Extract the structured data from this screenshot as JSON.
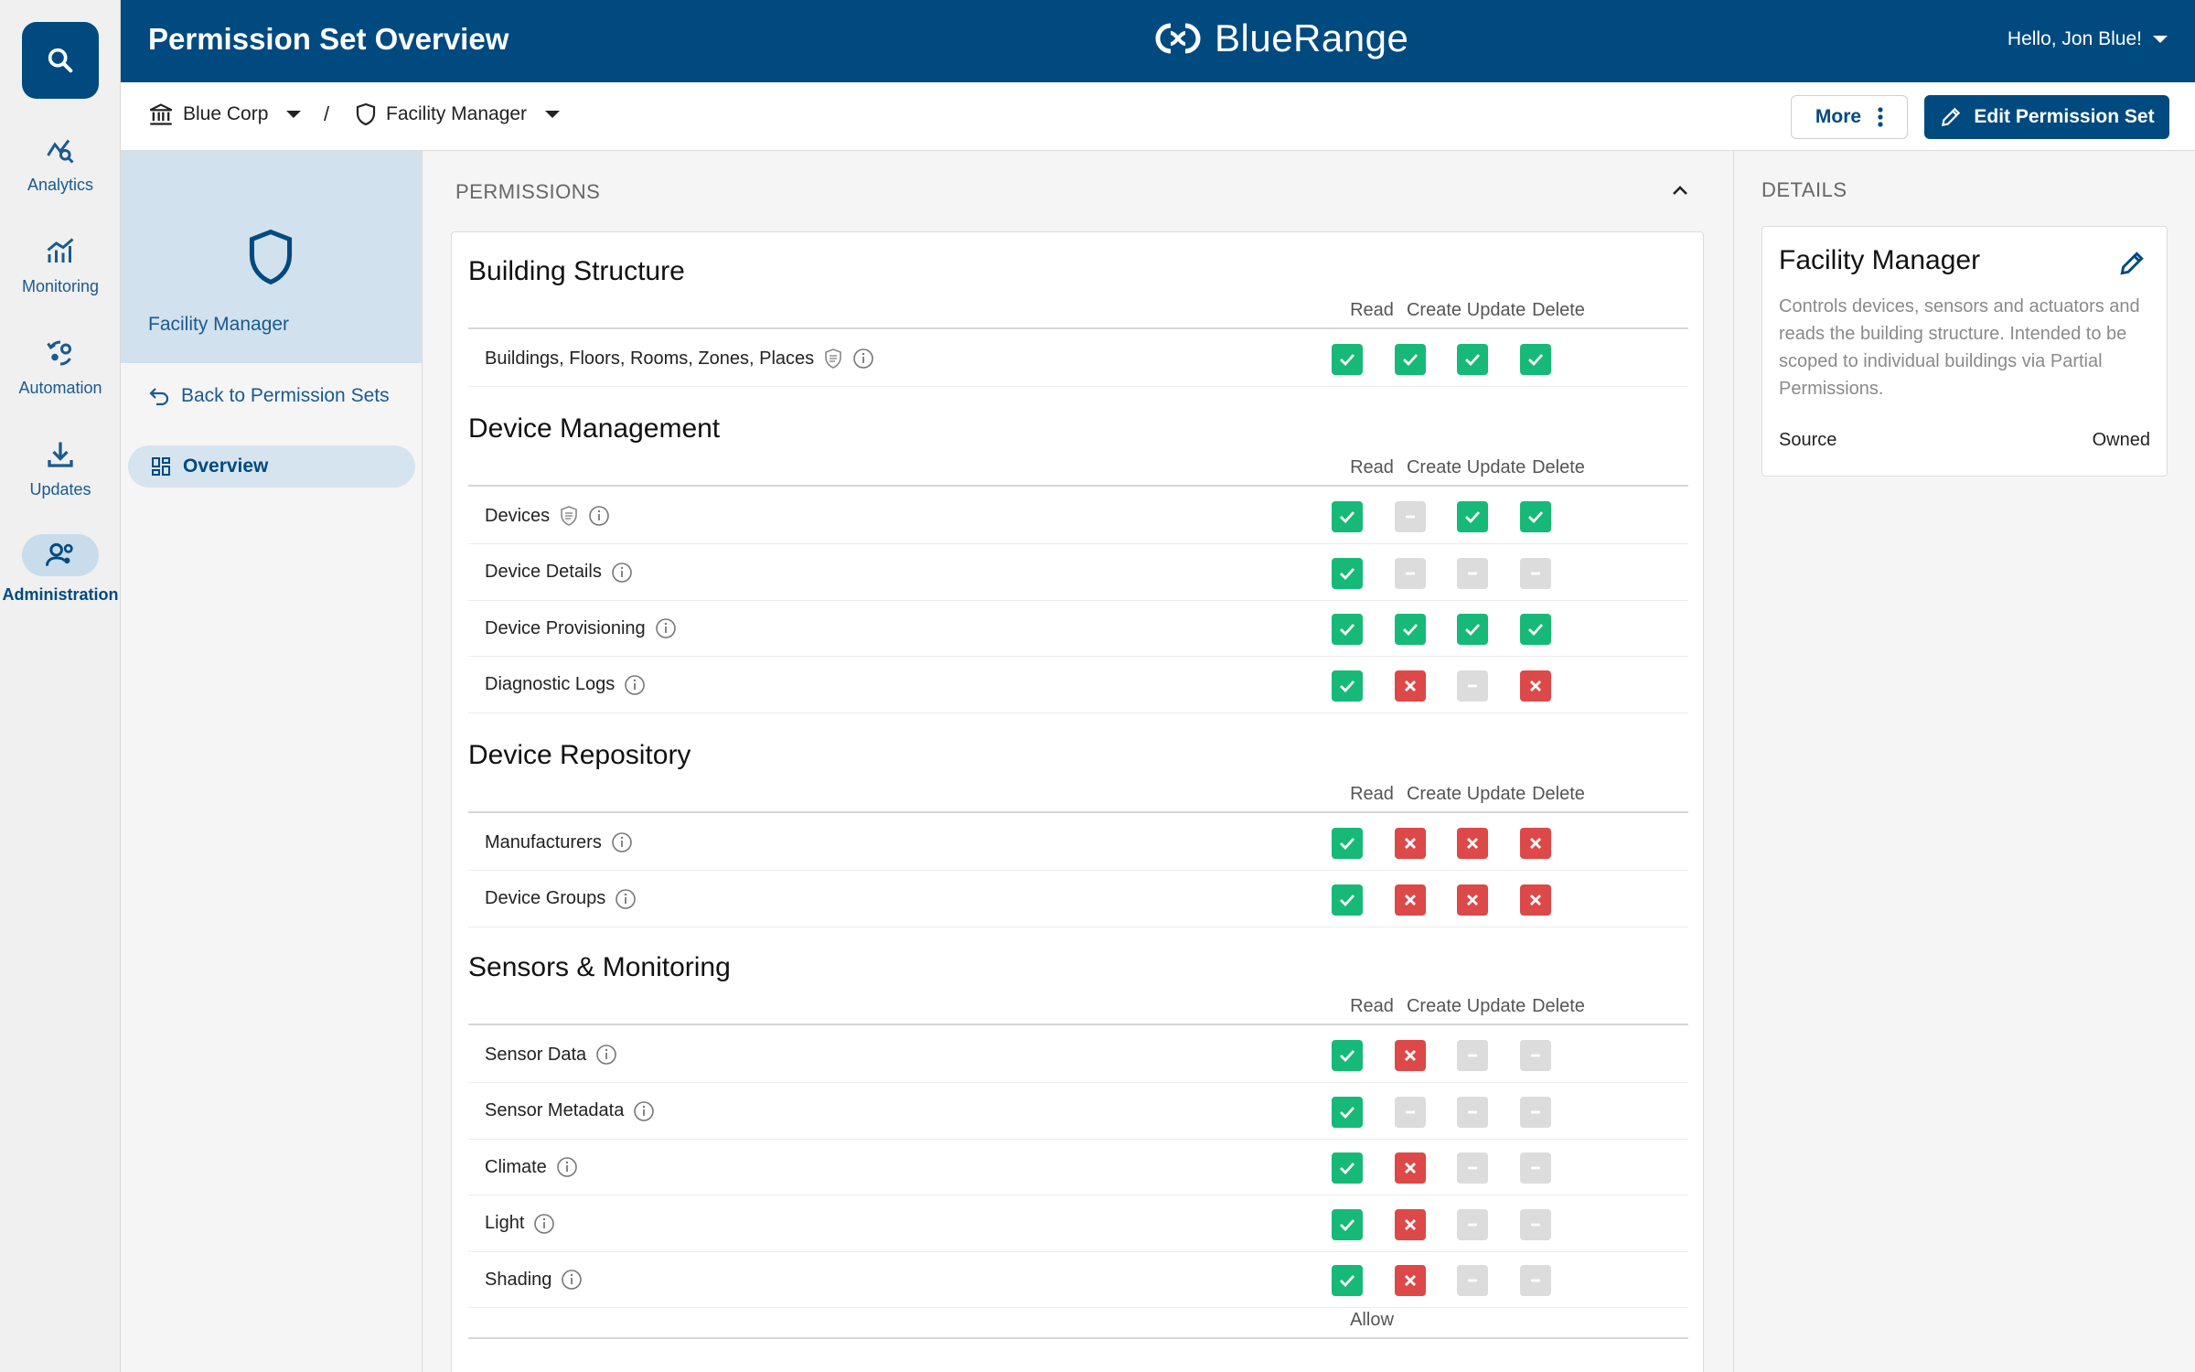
{
  "header": {
    "title": "Permission Set Overview",
    "brand": "BlueRange",
    "user_greeting": "Hello, Jon Blue!"
  },
  "rail": {
    "items": [
      {
        "label": "Analytics",
        "icon": "analytics-icon"
      },
      {
        "label": "Monitoring",
        "icon": "monitoring-icon"
      },
      {
        "label": "Automation",
        "icon": "automation-icon"
      },
      {
        "label": "Updates",
        "icon": "updates-icon"
      },
      {
        "label": "Administration",
        "icon": "administration-icon",
        "active": true
      }
    ]
  },
  "breadcrumb": {
    "org": "Blue Corp",
    "separator": "/",
    "permission_set": "Facility Manager"
  },
  "toolbar": {
    "more_label": "More",
    "edit_label": "Edit Permission Set"
  },
  "subnav": {
    "title": "Facility Manager",
    "back_label": "Back to Permission Sets",
    "overview_label": "Overview"
  },
  "permissions": {
    "section_label": "PERMISSIONS",
    "columns": [
      "Read",
      "Create",
      "Update",
      "Delete"
    ],
    "groups": [
      {
        "title": "Building Structure",
        "rows": [
          {
            "label": "Buildings, Floors, Rooms, Zones, Places",
            "scoped": true,
            "values": [
              "allow",
              "allow",
              "allow",
              "allow"
            ]
          }
        ]
      },
      {
        "title": "Device Management",
        "rows": [
          {
            "label": "Devices",
            "scoped": true,
            "values": [
              "allow",
              "na",
              "allow",
              "allow"
            ]
          },
          {
            "label": "Device Details",
            "scoped": false,
            "values": [
              "allow",
              "na",
              "na",
              "na"
            ]
          },
          {
            "label": "Device Provisioning",
            "scoped": false,
            "values": [
              "allow",
              "allow",
              "allow",
              "allow"
            ]
          },
          {
            "label": "Diagnostic Logs",
            "scoped": false,
            "values": [
              "allow",
              "deny",
              "na",
              "deny"
            ]
          }
        ]
      },
      {
        "title": "Device Repository",
        "rows": [
          {
            "label": "Manufacturers",
            "scoped": false,
            "values": [
              "allow",
              "deny",
              "deny",
              "deny"
            ]
          },
          {
            "label": "Device Groups",
            "scoped": false,
            "values": [
              "allow",
              "deny",
              "deny",
              "deny"
            ]
          }
        ]
      },
      {
        "title": "Sensors & Monitoring",
        "rows": [
          {
            "label": "Sensor Data",
            "scoped": false,
            "values": [
              "allow",
              "deny",
              "na",
              "na"
            ]
          },
          {
            "label": "Sensor Metadata",
            "scoped": false,
            "values": [
              "allow",
              "na",
              "na",
              "na"
            ]
          },
          {
            "label": "Climate",
            "scoped": false,
            "values": [
              "allow",
              "deny",
              "na",
              "na"
            ]
          },
          {
            "label": "Light",
            "scoped": false,
            "values": [
              "allow",
              "deny",
              "na",
              "na"
            ]
          },
          {
            "label": "Shading",
            "scoped": false,
            "values": [
              "allow",
              "deny",
              "na",
              "na"
            ]
          }
        ]
      }
    ],
    "trailing_column": "Allow"
  },
  "details": {
    "section_label": "DETAILS",
    "title": "Facility Manager",
    "description": "Controls devices, sensors and actuators and reads the building structure. Intended to be scoped to individual buildings via Partial Permissions.",
    "source_label": "Source",
    "source_value": "Owned"
  },
  "colors": {
    "primary": "#004a80",
    "allow": "#17b978",
    "deny": "#dd4848",
    "not_applicable": "#dcdcdc"
  }
}
